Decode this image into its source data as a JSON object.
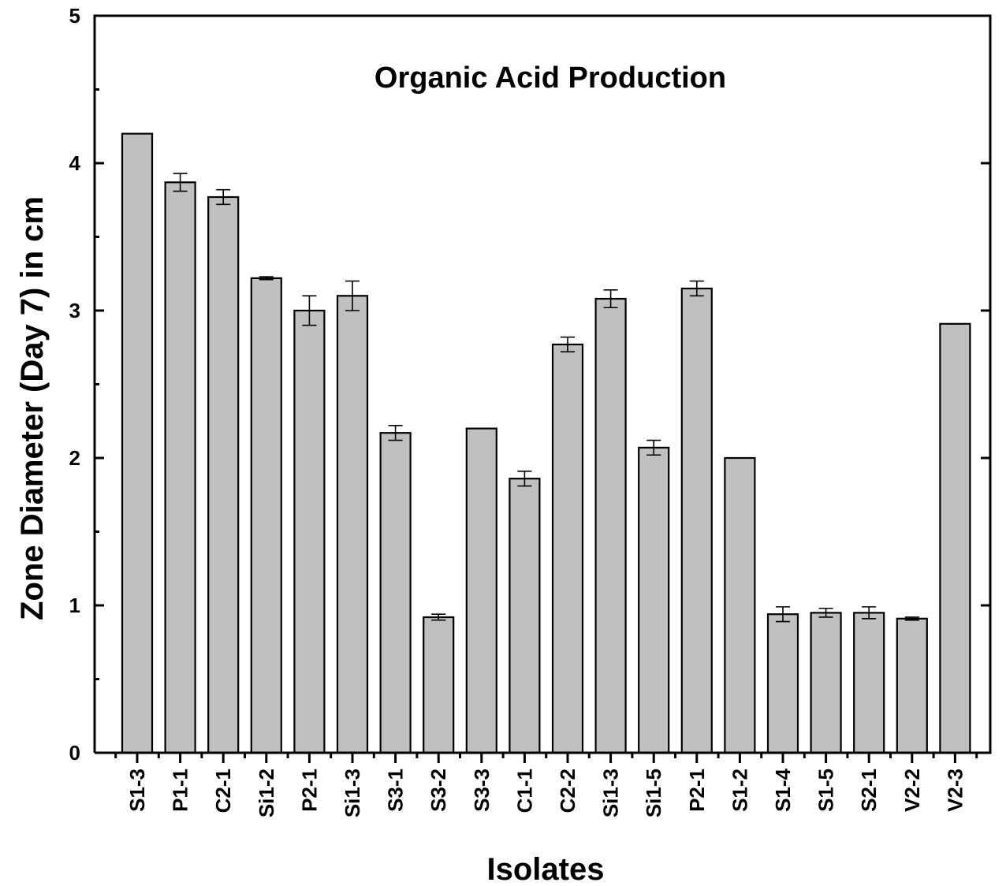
{
  "chart_data": {
    "type": "bar",
    "title": "Organic Acid Production",
    "xlabel": "Isolates",
    "ylabel": "Zone Diameter (Day 7) in cm",
    "ylim": [
      0,
      5
    ],
    "yticks": [
      0,
      1,
      2,
      3,
      4,
      5
    ],
    "grid": false,
    "categories": [
      "S1-3",
      "P1-1",
      "C2-1",
      "Si1-2",
      "P2-1",
      "Si1-3",
      "S3-1",
      "S3-2",
      "S3-3",
      "C1-1",
      "C2-2",
      "Si1-3",
      "Si1-5",
      "P2-1",
      "S1-2",
      "S1-4",
      "S1-5",
      "S2-1",
      "V2-2",
      "V2-3"
    ],
    "values": [
      4.2,
      3.87,
      3.77,
      3.22,
      3.0,
      3.1,
      2.17,
      0.92,
      2.2,
      1.86,
      2.77,
      3.08,
      2.07,
      3.15,
      2.0,
      0.94,
      0.95,
      0.95,
      0.91,
      2.91
    ],
    "errors": [
      0.0,
      0.06,
      0.05,
      0.01,
      0.1,
      0.1,
      0.05,
      0.02,
      0.0,
      0.05,
      0.05,
      0.06,
      0.05,
      0.05,
      0.0,
      0.05,
      0.03,
      0.04,
      0.01,
      0.0
    ],
    "colors": {
      "bar_fill": "#c0c0c0",
      "bar_stroke": "#000000",
      "axis": "#000000"
    }
  }
}
